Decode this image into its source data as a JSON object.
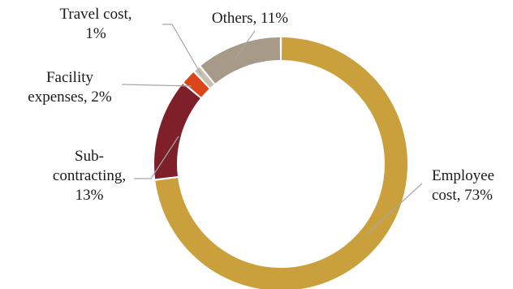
{
  "chart_data": {
    "type": "pie",
    "variant": "donut",
    "title": "",
    "start_angle_deg": 0,
    "direction": "clockwise",
    "slices": [
      {
        "name": "Employee cost",
        "value": 73,
        "color": "#C9A03C",
        "label_lines": [
          "Employee",
          "cost, 73%"
        ]
      },
      {
        "name": "Sub-contracting",
        "value": 13,
        "color": "#7E1F2A",
        "label_lines": [
          "Sub-",
          "contracting,",
          "13%"
        ]
      },
      {
        "name": "Facility expenses",
        "value": 2,
        "color": "#D9461B",
        "label_lines": [
          "Facility",
          "expenses, 2%"
        ]
      },
      {
        "name": "Travel cost",
        "value": 1,
        "color": "#C9C0B5",
        "label_lines": [
          "Travel cost,",
          "1%"
        ]
      },
      {
        "name": "Others",
        "value": 11,
        "color": "#A89A89",
        "label_lines": [
          "Others, 11%"
        ]
      }
    ]
  }
}
